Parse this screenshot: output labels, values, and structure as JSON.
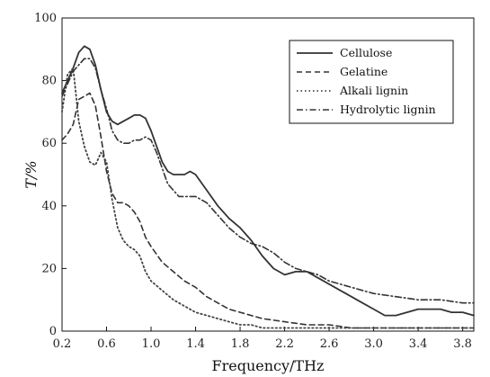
{
  "chart_data": {
    "type": "line",
    "xlabel": "Frequency/THz",
    "ylabel": "T/%",
    "xlim": [
      0.2,
      3.9
    ],
    "ylim": [
      0,
      100
    ],
    "xticks": [
      0.2,
      0.6,
      1.0,
      1.4,
      1.8,
      2.2,
      2.6,
      3.0,
      3.4,
      3.8
    ],
    "xtick_labels": [
      "0.2",
      "0.6",
      "1.0",
      "1.4",
      "1.8",
      "2.2",
      "2.6",
      "3.0",
      "3.4",
      "3.8"
    ],
    "yticks": [
      0,
      20,
      40,
      60,
      80,
      100
    ],
    "ytick_labels": [
      "0",
      "20",
      "40",
      "60",
      "80",
      "100"
    ],
    "grid": false,
    "legend_position": "top-right",
    "series": [
      {
        "name": "Cellulose",
        "style": "solid",
        "color": "#333333",
        "x": [
          0.2,
          0.25,
          0.3,
          0.35,
          0.4,
          0.45,
          0.5,
          0.55,
          0.6,
          0.65,
          0.7,
          0.75,
          0.8,
          0.85,
          0.9,
          0.95,
          1.0,
          1.05,
          1.1,
          1.15,
          1.2,
          1.25,
          1.3,
          1.35,
          1.4,
          1.5,
          1.6,
          1.7,
          1.8,
          1.9,
          2.0,
          2.1,
          2.2,
          2.3,
          2.4,
          2.5,
          2.6,
          2.7,
          2.8,
          2.9,
          3.0,
          3.1,
          3.2,
          3.3,
          3.4,
          3.5,
          3.6,
          3.7,
          3.8,
          3.9
        ],
        "y": [
          76,
          80,
          84,
          89,
          91,
          90,
          85,
          77,
          70,
          67,
          66,
          67,
          68,
          69,
          69,
          68,
          64,
          59,
          54,
          51,
          50,
          50,
          50,
          51,
          50,
          45,
          40,
          36,
          33,
          29,
          24,
          20,
          18,
          19,
          19,
          17,
          15,
          13,
          11,
          9,
          7,
          5,
          5,
          6,
          7,
          7,
          7,
          6,
          6,
          5
        ]
      },
      {
        "name": "Gelatine",
        "style": "dashed",
        "color": "#333333",
        "x": [
          0.2,
          0.25,
          0.3,
          0.35,
          0.4,
          0.45,
          0.5,
          0.55,
          0.6,
          0.65,
          0.7,
          0.75,
          0.8,
          0.85,
          0.9,
          0.95,
          1.0,
          1.1,
          1.2,
          1.3,
          1.4,
          1.5,
          1.6,
          1.7,
          1.8,
          1.9,
          2.0,
          2.2,
          2.4,
          2.6,
          2.8,
          3.0,
          3.2,
          3.4,
          3.6,
          3.8,
          3.9
        ],
        "y": [
          61,
          63,
          66,
          74,
          75,
          76,
          72,
          62,
          51,
          44,
          41,
          41,
          40,
          38,
          35,
          30,
          27,
          22,
          19,
          16,
          14,
          11,
          9,
          7,
          6,
          5,
          4,
          3,
          2,
          2,
          1,
          1,
          1,
          1,
          1,
          1,
          1
        ]
      },
      {
        "name": "Alkali lignin",
        "style": "dotted",
        "color": "#444444",
        "x": [
          0.2,
          0.25,
          0.3,
          0.35,
          0.4,
          0.45,
          0.5,
          0.55,
          0.6,
          0.65,
          0.7,
          0.75,
          0.8,
          0.85,
          0.9,
          0.95,
          1.0,
          1.1,
          1.2,
          1.3,
          1.4,
          1.5,
          1.6,
          1.7,
          1.8,
          1.9,
          2.0,
          2.2,
          2.4,
          2.6,
          2.8,
          3.0,
          3.2,
          3.4,
          3.6,
          3.8,
          3.9
        ],
        "y": [
          70,
          82,
          84,
          67,
          59,
          54,
          53,
          57,
          54,
          42,
          33,
          29,
          27,
          26,
          24,
          19,
          16,
          13,
          10,
          8,
          6,
          5,
          4,
          3,
          2,
          2,
          1,
          1,
          1,
          1,
          1,
          1,
          1,
          1,
          1,
          1,
          1
        ]
      },
      {
        "name": "Hydrolytic lignin",
        "style": "dashdot",
        "color": "#333333",
        "x": [
          0.2,
          0.25,
          0.3,
          0.35,
          0.4,
          0.45,
          0.5,
          0.55,
          0.6,
          0.65,
          0.7,
          0.75,
          0.8,
          0.85,
          0.9,
          0.95,
          1.0,
          1.05,
          1.1,
          1.15,
          1.2,
          1.25,
          1.3,
          1.35,
          1.4,
          1.5,
          1.6,
          1.7,
          1.8,
          1.9,
          2.0,
          2.1,
          2.2,
          2.3,
          2.4,
          2.5,
          2.6,
          2.7,
          2.8,
          2.9,
          3.0,
          3.2,
          3.4,
          3.6,
          3.8,
          3.9
        ],
        "y": [
          75,
          79,
          83,
          85,
          87,
          87,
          84,
          77,
          71,
          64,
          61,
          60,
          60,
          61,
          61,
          62,
          61,
          57,
          52,
          47,
          45,
          43,
          43,
          43,
          43,
          41,
          37,
          33,
          30,
          28,
          27,
          25,
          22,
          20,
          19,
          18,
          16,
          15,
          14,
          13,
          12,
          11,
          10,
          10,
          9,
          9
        ]
      }
    ]
  }
}
